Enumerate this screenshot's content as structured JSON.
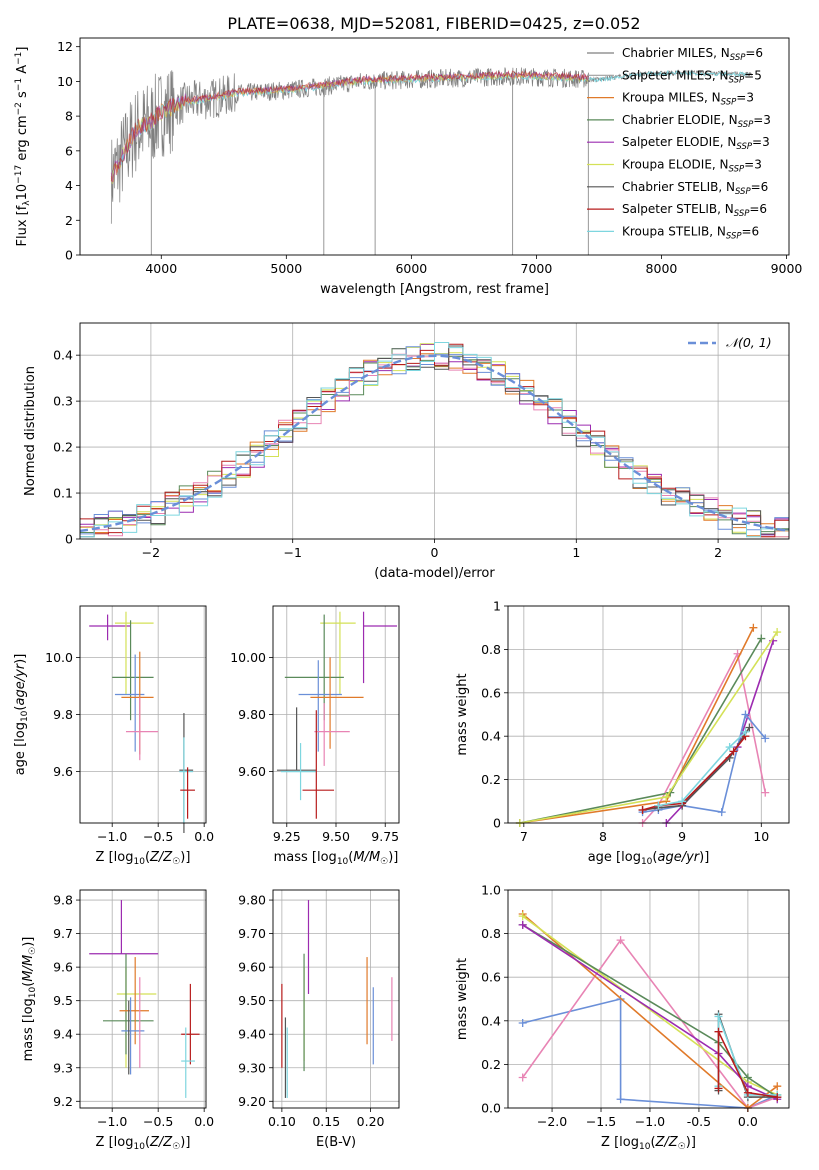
{
  "title": "PLATE=0638, MJD=52081, FIBERID=0425, z=0.052",
  "colors": {
    "chabrier_miles": "#7f7f7f",
    "salpeter_miles": "#7f7f7f",
    "kroupa_miles": "#e07a2a",
    "chabrier_elodie": "#5a8a5a",
    "salpeter_elodie": "#9c2bb0",
    "kroupa_elodie": "#d4e157",
    "chabrier_stelib": "#555555",
    "salpeter_stelib": "#b71c1c",
    "kroupa_stelib": "#7ed6df",
    "blue": "#6a8fd8",
    "pink": "#e884b4",
    "normal_curve": "#6a8fd8"
  },
  "chart_data": [
    {
      "id": "spectrum",
      "type": "line",
      "xlabel": "wavelength [Angstrom, rest frame]",
      "ylabel": "Flux [f_λ10^-17 erg cm^-2 s^-1 A^-1]",
      "xlim": [
        3350,
        9020
      ],
      "ylim": [
        0,
        12.5
      ],
      "xticks": [
        4000,
        5000,
        6000,
        7000,
        8000,
        9000
      ],
      "yticks": [
        0,
        2,
        4,
        6,
        8,
        10,
        12
      ],
      "legend_placement": "right",
      "legend": [
        {
          "label": "Chabrier MILES, N",
          "sub": "SSP",
          "suffix": "=6",
          "color": "#7f7f7f"
        },
        {
          "label": "Salpeter MILES, N",
          "sub": "SSP",
          "suffix": "=5",
          "color": "#9e9e9e"
        },
        {
          "label": "Kroupa MILES, N",
          "sub": "SSP",
          "suffix": "=3",
          "color": "#e07a2a"
        },
        {
          "label": "Chabrier ELODIE, N",
          "sub": "SSP",
          "suffix": "=3",
          "color": "#5a8a5a"
        },
        {
          "label": "Salpeter ELODIE, N",
          "sub": "SSP",
          "suffix": "=3",
          "color": "#9c2bb0"
        },
        {
          "label": "Kroupa ELODIE, N",
          "sub": "SSP",
          "suffix": "=3",
          "color": "#d4e157"
        },
        {
          "label": "Chabrier STELIB, N",
          "sub": "SSP",
          "suffix": "=6",
          "color": "#555555"
        },
        {
          "label": "Salpeter STELIB, N",
          "sub": "SSP",
          "suffix": "=6",
          "color": "#b71c1c"
        },
        {
          "label": "Kroupa STELIB, N",
          "sub": "SSP",
          "suffix": "=6",
          "color": "#7ed6df"
        }
      ],
      "continuum_x": [
        3600,
        3700,
        3800,
        3900,
        4000,
        4100,
        4200,
        4400,
        4600,
        4800,
        5000,
        5300,
        5600,
        6000,
        6400,
        6800,
        7200,
        7500,
        7800,
        8200,
        8700
      ],
      "continuum_y": [
        4.4,
        5.8,
        7.2,
        7.5,
        8.2,
        8.5,
        8.8,
        9.0,
        9.3,
        9.4,
        9.5,
        9.7,
        10.0,
        10.1,
        10.2,
        10.3,
        10.2,
        10.1,
        10.4,
        10.5,
        10.4
      ]
    },
    {
      "id": "residual-hist",
      "type": "step",
      "xlabel": "(data-model)/error",
      "ylabel": "Normed distribution",
      "xlim": [
        -2.5,
        2.5
      ],
      "ylim": [
        0,
        0.47
      ],
      "xticks": [
        -2,
        -1,
        0,
        1,
        2
      ],
      "yticks": [
        0.0,
        0.1,
        0.2,
        0.3,
        0.4
      ],
      "grid": true,
      "legend_placement": "top-right",
      "legend": [
        {
          "label": "𝒩(0, 1)",
          "color": "#6a8fd8",
          "dash": true
        }
      ],
      "bin_width": 0.1
    },
    {
      "id": "age-vs-z",
      "type": "errorbar",
      "xlabel": "Z [log10(Z/Z☉)]",
      "ylabel": "age [log10(age/yr)]",
      "xlim": [
        -1.35,
        0.02
      ],
      "ylim": [
        9.42,
        10.18
      ],
      "xticks": [
        -1.0,
        -0.5,
        0.0
      ],
      "yticks": [
        9.6,
        9.8,
        10.0
      ],
      "grid": true,
      "points": [
        {
          "x": -1.05,
          "y": 10.11,
          "xerr": [
            0.2,
            0.25
          ],
          "yerr": [
            0.05,
            0.04
          ],
          "color": "#9c2bb0"
        },
        {
          "x": -0.85,
          "y": 10.12,
          "xerr": [
            0.12,
            0.3
          ],
          "yerr": [
            0.25,
            0.04
          ],
          "color": "#d4e157"
        },
        {
          "x": -0.8,
          "y": 9.93,
          "xerr": [
            0.2,
            0.25
          ],
          "yerr": [
            0.15,
            0.2
          ],
          "color": "#5a8a5a"
        },
        {
          "x": -0.75,
          "y": 9.87,
          "xerr": [
            0.22,
            0.1
          ],
          "yerr": [
            0.2,
            0.14
          ],
          "color": "#6a8fd8"
        },
        {
          "x": -0.7,
          "y": 9.86,
          "xerr": [
            0.2,
            0.15
          ],
          "yerr": [
            0.2,
            0.16
          ],
          "color": "#e07a2a"
        },
        {
          "x": -0.7,
          "y": 9.74,
          "xerr": [
            0.15,
            0.2
          ],
          "yerr": [
            0.1,
            0.12
          ],
          "color": "#e884b4"
        },
        {
          "x": -0.22,
          "y": 9.605,
          "xerr": [
            0.05,
            0.1
          ],
          "yerr": [
            0.22,
            0.2
          ],
          "color": "#555555"
        },
        {
          "x": -0.22,
          "y": 9.6,
          "xerr": [
            0.05,
            0.1
          ],
          "yerr": [
            0.18,
            0.12
          ],
          "color": "#7ed6df"
        },
        {
          "x": -0.18,
          "y": 9.535,
          "xerr": [
            0.08,
            0.08
          ],
          "yerr": [
            0.1,
            0.08
          ],
          "color": "#b71c1c"
        }
      ]
    },
    {
      "id": "age-vs-mass",
      "type": "errorbar",
      "xlabel": "mass [log10(M/M☉)]",
      "ylabel": "",
      "xlim": [
        9.18,
        9.82
      ],
      "ylim": [
        9.42,
        10.18
      ],
      "xticks": [
        9.25,
        9.5,
        9.75
      ],
      "yticks": [
        9.6,
        9.8,
        10.0
      ],
      "grid": true,
      "points": [
        {
          "x": 9.64,
          "y": 10.11,
          "xerr": [
            0.0,
            0.17
          ],
          "yerr": [
            0.2,
            0.05
          ],
          "color": "#9c2bb0"
        },
        {
          "x": 9.52,
          "y": 10.12,
          "xerr": [
            0.1,
            0.08
          ],
          "yerr": [
            0.25,
            0.04
          ],
          "color": "#d4e157"
        },
        {
          "x": 9.44,
          "y": 9.93,
          "xerr": [
            0.2,
            0.1
          ],
          "yerr": [
            0.15,
            0.22
          ],
          "color": "#5a8a5a"
        },
        {
          "x": 9.41,
          "y": 9.87,
          "xerr": [
            0.1,
            0.12
          ],
          "yerr": [
            0.2,
            0.12
          ],
          "color": "#6a8fd8"
        },
        {
          "x": 9.47,
          "y": 9.86,
          "xerr": [
            0.1,
            0.17
          ],
          "yerr": [
            0.18,
            0.14
          ],
          "color": "#e07a2a"
        },
        {
          "x": 9.44,
          "y": 9.74,
          "xerr": [
            0.05,
            0.13
          ],
          "yerr": [
            0.12,
            0.1
          ],
          "color": "#e884b4"
        },
        {
          "x": 9.3,
          "y": 9.605,
          "xerr": [
            0.1,
            0.1
          ],
          "yerr": [
            0.0,
            0.22
          ],
          "color": "#555555"
        },
        {
          "x": 9.32,
          "y": 9.6,
          "xerr": [
            0.1,
            0.08
          ],
          "yerr": [
            0.1,
            0.1
          ],
          "color": "#7ed6df"
        },
        {
          "x": 9.4,
          "y": 9.535,
          "xerr": [
            0.07,
            0.09
          ],
          "yerr": [
            0.1,
            0.28
          ],
          "color": "#b71c1c"
        }
      ]
    },
    {
      "id": "mass-weight-vs-age",
      "type": "line",
      "xlabel": "age [log10(age/yr)]",
      "ylabel": "mass weight",
      "xlim": [
        6.8,
        10.35
      ],
      "ylim": [
        0,
        1.0
      ],
      "xticks": [
        7,
        8,
        9,
        10
      ],
      "yticks": [
        0.0,
        0.2,
        0.4,
        0.6,
        0.8,
        1.0
      ],
      "grid": true,
      "series": [
        {
          "color": "#e884b4",
          "x": [
            8.5,
            8.7,
            9.7,
            10.05
          ],
          "y": [
            0.0,
            0.08,
            0.78,
            0.14
          ]
        },
        {
          "color": "#e07a2a",
          "x": [
            6.95,
            8.8,
            9.9
          ],
          "y": [
            0.0,
            0.1,
            0.9
          ]
        },
        {
          "color": "#5a8a5a",
          "x": [
            6.95,
            8.85,
            10.0
          ],
          "y": [
            0.0,
            0.14,
            0.85
          ]
        },
        {
          "color": "#9c2bb0",
          "x": [
            8.8,
            9.7,
            10.15
          ],
          "y": [
            0.0,
            0.35,
            0.84
          ]
        },
        {
          "color": "#d4e157",
          "x": [
            6.95,
            8.8,
            10.2
          ],
          "y": [
            0.0,
            0.12,
            0.88
          ]
        },
        {
          "color": "#6a8fd8",
          "x": [
            8.5,
            8.7,
            9.0,
            9.5,
            9.8,
            10.05
          ],
          "y": [
            0.05,
            0.06,
            0.08,
            0.05,
            0.5,
            0.39
          ]
        },
        {
          "color": "#555555",
          "x": [
            8.5,
            8.7,
            9.0,
            9.6,
            9.85
          ],
          "y": [
            0.06,
            0.07,
            0.08,
            0.3,
            0.44
          ]
        },
        {
          "color": "#b71c1c",
          "x": [
            8.5,
            8.7,
            9.0,
            9.65,
            9.8
          ],
          "y": [
            0.06,
            0.08,
            0.09,
            0.33,
            0.4
          ]
        },
        {
          "color": "#7ed6df",
          "x": [
            8.7,
            9.0,
            9.6,
            9.8
          ],
          "y": [
            0.08,
            0.1,
            0.35,
            0.42
          ]
        }
      ]
    },
    {
      "id": "mass-vs-z",
      "type": "errorbar",
      "xlabel": "Z [log10(Z/Z☉)]",
      "ylabel": "mass [log10(M/M☉)]",
      "xlim": [
        -1.35,
        0.02
      ],
      "ylim": [
        9.18,
        9.83
      ],
      "xticks": [
        -1.0,
        -0.5,
        0.0
      ],
      "yticks": [
        9.2,
        9.3,
        9.4,
        9.5,
        9.6,
        9.7,
        9.8
      ],
      "grid": true,
      "points": [
        {
          "x": -0.9,
          "y": 9.64,
          "xerr": [
            0.35,
            0.4
          ],
          "yerr": [
            0.0,
            0.16
          ],
          "color": "#9c2bb0"
        },
        {
          "x": -0.85,
          "y": 9.52,
          "xerr": [
            0.1,
            0.33
          ],
          "yerr": [
            0.22,
            0.08
          ],
          "color": "#d4e157"
        },
        {
          "x": -0.85,
          "y": 9.44,
          "xerr": [
            0.25,
            0.3
          ],
          "yerr": [
            0.1,
            0.2
          ],
          "color": "#5a8a5a"
        },
        {
          "x": -0.75,
          "y": 9.47,
          "xerr": [
            0.17,
            0.15
          ],
          "yerr": [
            0.1,
            0.16
          ],
          "color": "#e07a2a"
        },
        {
          "x": -0.8,
          "y": 9.41,
          "xerr": [
            0.1,
            0.15
          ],
          "yerr": [
            0.13,
            0.1
          ],
          "color": "#6a8fd8"
        },
        {
          "x": -0.7,
          "y": 9.44,
          "xerr": [
            0.0,
            0.0
          ],
          "yerr": [
            0.14,
            0.13
          ],
          "color": "#e884b4"
        },
        {
          "x": -0.82,
          "y": 9.4,
          "xerr": [
            0.0,
            0.0
          ],
          "yerr": [
            0.12,
            0.1
          ],
          "color": "#555555"
        },
        {
          "x": -0.15,
          "y": 9.4,
          "xerr": [
            0.1,
            0.1
          ],
          "yerr": [
            0.09,
            0.15
          ],
          "color": "#b71c1c"
        },
        {
          "x": -0.2,
          "y": 9.32,
          "xerr": [
            0.05,
            0.1
          ],
          "yerr": [
            0.11,
            0.1
          ],
          "color": "#7ed6df"
        }
      ]
    },
    {
      "id": "mass-vs-ebv",
      "type": "errorbar",
      "xlabel": "E(B-V)",
      "ylabel": "",
      "xlim": [
        0.09,
        0.232
      ],
      "ylim": [
        9.18,
        9.83
      ],
      "xticks": [
        0.1,
        0.15,
        0.2
      ],
      "yticks": [
        9.2,
        9.3,
        9.4,
        9.5,
        9.6,
        9.7,
        9.8
      ],
      "grid": true,
      "points": [
        {
          "x": 0.13,
          "y": 9.64,
          "xerr": [
            0,
            0
          ],
          "yerr": [
            0.12,
            0.16
          ],
          "color": "#9c2bb0"
        },
        {
          "x": 0.125,
          "y": 9.52,
          "xerr": [
            0,
            0
          ],
          "yerr": [
            0.2,
            0.08
          ],
          "color": "#d4e157"
        },
        {
          "x": 0.125,
          "y": 9.44,
          "xerr": [
            0,
            0
          ],
          "yerr": [
            0.15,
            0.2
          ],
          "color": "#5a8a5a"
        },
        {
          "x": 0.196,
          "y": 9.47,
          "xerr": [
            0,
            0
          ],
          "yerr": [
            0.1,
            0.16
          ],
          "color": "#e07a2a"
        },
        {
          "x": 0.203,
          "y": 9.41,
          "xerr": [
            0,
            0
          ],
          "yerr": [
            0.1,
            0.13
          ],
          "color": "#6a8fd8"
        },
        {
          "x": 0.224,
          "y": 9.44,
          "xerr": [
            0,
            0
          ],
          "yerr": [
            0.06,
            0.13
          ],
          "color": "#e884b4"
        },
        {
          "x": 0.104,
          "y": 9.33,
          "xerr": [
            0,
            0
          ],
          "yerr": [
            0.12,
            0.12
          ],
          "color": "#555555"
        },
        {
          "x": 0.1,
          "y": 9.4,
          "xerr": [
            0,
            0
          ],
          "yerr": [
            0.1,
            0.15
          ],
          "color": "#b71c1c"
        },
        {
          "x": 0.106,
          "y": 9.32,
          "xerr": [
            0,
            0
          ],
          "yerr": [
            0.11,
            0.1
          ],
          "color": "#7ed6df"
        }
      ]
    },
    {
      "id": "mass-weight-vs-z",
      "type": "line",
      "xlabel": "Z [log10(Z/Z☉)]",
      "ylabel": "mass weight",
      "xlim": [
        -2.45,
        0.42
      ],
      "ylim": [
        0,
        1.0
      ],
      "xticks": [
        -2.0,
        -1.5,
        -1.0,
        -0.5,
        0.0
      ],
      "yticks": [
        0.0,
        0.2,
        0.4,
        0.6,
        0.8,
        1.0
      ],
      "grid": true,
      "series": [
        {
          "color": "#6a8fd8",
          "x": [
            -2.3,
            -1.3,
            -1.3,
            0.0,
            0.3
          ],
          "y": [
            0.39,
            0.5,
            0.04,
            0.0,
            0.06
          ]
        },
        {
          "color": "#e884b4",
          "x": [
            -2.3,
            -1.3,
            0.0,
            0.3
          ],
          "y": [
            0.14,
            0.77,
            0.0,
            0.05
          ]
        },
        {
          "color": "#e07a2a",
          "x": [
            -2.3,
            0.0,
            0.3
          ],
          "y": [
            0.89,
            0.0,
            0.1
          ]
        },
        {
          "color": "#d4e157",
          "x": [
            -2.3,
            0.0,
            0.3
          ],
          "y": [
            0.88,
            0.12,
            0.06
          ]
        },
        {
          "color": "#5a8a5a",
          "x": [
            -2.3,
            -0.3,
            0.0,
            0.3
          ],
          "y": [
            0.84,
            0.3,
            0.14,
            0.05
          ]
        },
        {
          "color": "#9c2bb0",
          "x": [
            -2.3,
            -0.3,
            0.0,
            0.3
          ],
          "y": [
            0.84,
            0.25,
            0.1,
            0.04
          ]
        },
        {
          "color": "#555555",
          "x": [
            -0.3,
            -0.3,
            0.0,
            0.3
          ],
          "y": [
            0.08,
            0.43,
            0.05,
            0.05
          ]
        },
        {
          "color": "#7ed6df",
          "x": [
            -0.3,
            -0.3,
            0.0,
            0.3
          ],
          "y": [
            0.1,
            0.42,
            0.06,
            0.06
          ]
        },
        {
          "color": "#b71c1c",
          "x": [
            -0.3,
            -0.3,
            0.0,
            0.3
          ],
          "y": [
            0.09,
            0.35,
            0.07,
            0.05
          ]
        }
      ]
    }
  ]
}
